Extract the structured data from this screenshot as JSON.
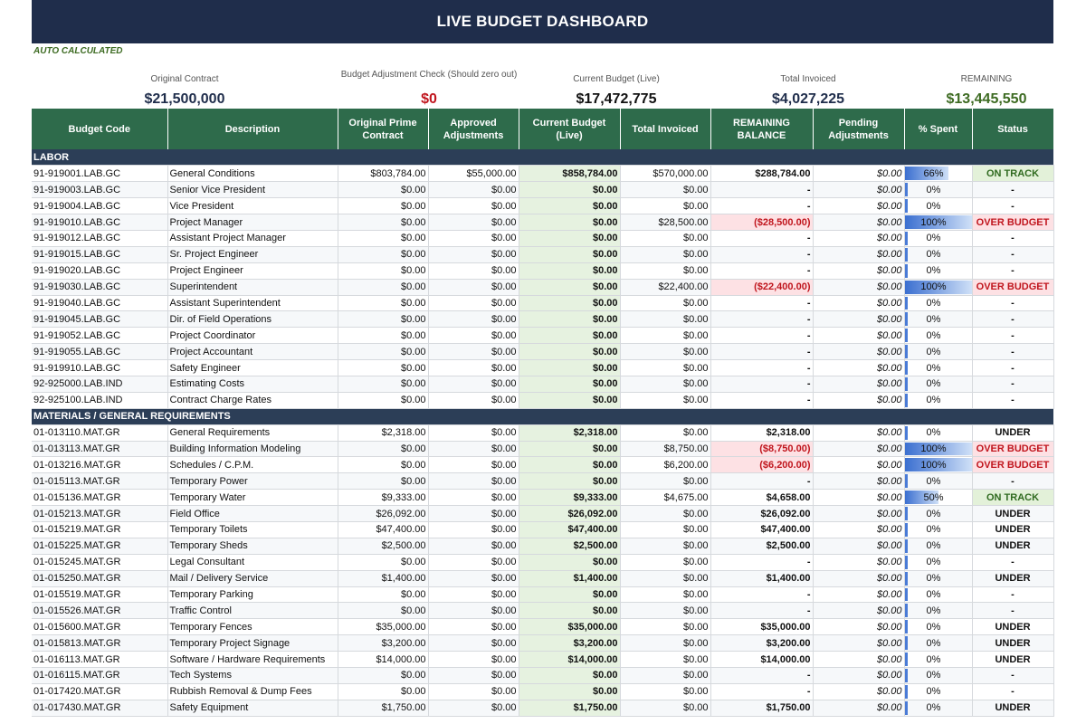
{
  "title": "LIVE BUDGET DASHBOARD",
  "auto_calc": "AUTO CALCULATED",
  "summary": [
    {
      "label": "Original Contract",
      "value": "$21,500,000",
      "color": "#1f2d4b"
    },
    {
      "label": "Budget Adjustment Check (Should zero out)",
      "value": "$0",
      "color": "#c0151d"
    },
    {
      "label": "Current Budget (Live)",
      "value": "$17,472,775",
      "color": "#111111"
    },
    {
      "label": "Total Invoiced",
      "value": "$4,027,225",
      "color": "#1f2d4b"
    },
    {
      "label": "REMAINING",
      "value": "$13,445,550",
      "color": "#3d6b22"
    }
  ],
  "headers": [
    "Budget Code",
    "Description",
    "Original Prime Contract",
    "Approved Adjustments",
    "Current Budget (Live)",
    "Total Invoiced",
    "REMAINING BALANCE",
    "Pending Adjustments",
    "% Spent",
    "Status"
  ],
  "sections": [
    {
      "name": "LABOR",
      "rows": [
        {
          "code": "91-919001.LAB.GC",
          "desc": "General Conditions",
          "orig": "$803,784.00",
          "adj": "$55,000.00",
          "cur": "$858,784.00",
          "inv": "$570,000.00",
          "rem": "$288,784.00",
          "pend": "$0.00",
          "pct": "66%",
          "pctv": 66,
          "status": "ON TRACK"
        },
        {
          "code": "91-919003.LAB.GC",
          "desc": "Senior Vice President",
          "orig": "$0.00",
          "adj": "$0.00",
          "cur": "$0.00",
          "inv": "$0.00",
          "rem": "-",
          "pend": "$0.00",
          "pct": "0%",
          "pctv": 0,
          "status": "-"
        },
        {
          "code": "91-919004.LAB.GC",
          "desc": "Vice President",
          "orig": "$0.00",
          "adj": "$0.00",
          "cur": "$0.00",
          "inv": "$0.00",
          "rem": "-",
          "pend": "$0.00",
          "pct": "0%",
          "pctv": 0,
          "status": "-"
        },
        {
          "code": "91-919010.LAB.GC",
          "desc": "Project Manager",
          "orig": "$0.00",
          "adj": "$0.00",
          "cur": "$0.00",
          "inv": "$28,500.00",
          "rem": "($28,500.00)",
          "pend": "$0.00",
          "pct": "100%",
          "pctv": 100,
          "status": "OVER BUDGET"
        },
        {
          "code": "91-919012.LAB.GC",
          "desc": "Assistant Project Manager",
          "orig": "$0.00",
          "adj": "$0.00",
          "cur": "$0.00",
          "inv": "$0.00",
          "rem": "-",
          "pend": "$0.00",
          "pct": "0%",
          "pctv": 0,
          "status": "-"
        },
        {
          "code": "91-919015.LAB.GC",
          "desc": "Sr. Project Engineer",
          "orig": "$0.00",
          "adj": "$0.00",
          "cur": "$0.00",
          "inv": "$0.00",
          "rem": "-",
          "pend": "$0.00",
          "pct": "0%",
          "pctv": 0,
          "status": "-"
        },
        {
          "code": "91-919020.LAB.GC",
          "desc": "Project Engineer",
          "orig": "$0.00",
          "adj": "$0.00",
          "cur": "$0.00",
          "inv": "$0.00",
          "rem": "-",
          "pend": "$0.00",
          "pct": "0%",
          "pctv": 0,
          "status": "-"
        },
        {
          "code": "91-919030.LAB.GC",
          "desc": "Superintendent",
          "orig": "$0.00",
          "adj": "$0.00",
          "cur": "$0.00",
          "inv": "$22,400.00",
          "rem": "($22,400.00)",
          "pend": "$0.00",
          "pct": "100%",
          "pctv": 100,
          "status": "OVER BUDGET"
        },
        {
          "code": "91-919040.LAB.GC",
          "desc": "Assistant Superintendent",
          "orig": "$0.00",
          "adj": "$0.00",
          "cur": "$0.00",
          "inv": "$0.00",
          "rem": "-",
          "pend": "$0.00",
          "pct": "0%",
          "pctv": 0,
          "status": "-"
        },
        {
          "code": "91-919045.LAB.GC",
          "desc": "Dir. of Field Operations",
          "orig": "$0.00",
          "adj": "$0.00",
          "cur": "$0.00",
          "inv": "$0.00",
          "rem": "-",
          "pend": "$0.00",
          "pct": "0%",
          "pctv": 0,
          "status": "-"
        },
        {
          "code": "91-919052.LAB.GC",
          "desc": "Project Coordinator",
          "orig": "$0.00",
          "adj": "$0.00",
          "cur": "$0.00",
          "inv": "$0.00",
          "rem": "-",
          "pend": "$0.00",
          "pct": "0%",
          "pctv": 0,
          "status": "-"
        },
        {
          "code": "91-919055.LAB.GC",
          "desc": "Project Accountant",
          "orig": "$0.00",
          "adj": "$0.00",
          "cur": "$0.00",
          "inv": "$0.00",
          "rem": "-",
          "pend": "$0.00",
          "pct": "0%",
          "pctv": 0,
          "status": "-"
        },
        {
          "code": "91-919910.LAB.GC",
          "desc": "Safety Engineer",
          "orig": "$0.00",
          "adj": "$0.00",
          "cur": "$0.00",
          "inv": "$0.00",
          "rem": "-",
          "pend": "$0.00",
          "pct": "0%",
          "pctv": 0,
          "status": "-"
        },
        {
          "code": "92-925000.LAB.IND",
          "desc": "Estimating Costs",
          "orig": "$0.00",
          "adj": "$0.00",
          "cur": "$0.00",
          "inv": "$0.00",
          "rem": "-",
          "pend": "$0.00",
          "pct": "0%",
          "pctv": 0,
          "status": "-"
        },
        {
          "code": "92-925100.LAB.IND",
          "desc": "Contract Charge Rates",
          "orig": "$0.00",
          "adj": "$0.00",
          "cur": "$0.00",
          "inv": "$0.00",
          "rem": "-",
          "pend": "$0.00",
          "pct": "0%",
          "pctv": 0,
          "status": "-"
        }
      ]
    },
    {
      "name": "MATERIALS / GENERAL REQUIREMENTS",
      "rows": [
        {
          "code": "01-013110.MAT.GR",
          "desc": "General Requirements",
          "orig": "$2,318.00",
          "adj": "$0.00",
          "cur": "$2,318.00",
          "inv": "$0.00",
          "rem": "$2,318.00",
          "pend": "$0.00",
          "pct": "0%",
          "pctv": 0,
          "status": "UNDER"
        },
        {
          "code": "01-013113.MAT.GR",
          "desc": "Building Information Modeling",
          "orig": "$0.00",
          "adj": "$0.00",
          "cur": "$0.00",
          "inv": "$8,750.00",
          "rem": "($8,750.00)",
          "pend": "$0.00",
          "pct": "100%",
          "pctv": 100,
          "status": "OVER BUDGET"
        },
        {
          "code": "01-013216.MAT.GR",
          "desc": "Schedules / C.P.M.",
          "orig": "$0.00",
          "adj": "$0.00",
          "cur": "$0.00",
          "inv": "$6,200.00",
          "rem": "($6,200.00)",
          "pend": "$0.00",
          "pct": "100%",
          "pctv": 100,
          "status": "OVER BUDGET"
        },
        {
          "code": "01-015113.MAT.GR",
          "desc": "Temporary Power",
          "orig": "$0.00",
          "adj": "$0.00",
          "cur": "$0.00",
          "inv": "$0.00",
          "rem": "-",
          "pend": "$0.00",
          "pct": "0%",
          "pctv": 0,
          "status": "-"
        },
        {
          "code": "01-015136.MAT.GR",
          "desc": "Temporary Water",
          "orig": "$9,333.00",
          "adj": "$0.00",
          "cur": "$9,333.00",
          "inv": "$4,675.00",
          "rem": "$4,658.00",
          "pend": "$0.00",
          "pct": "50%",
          "pctv": 50,
          "status": "ON TRACK"
        },
        {
          "code": "01-015213.MAT.GR",
          "desc": "Field Office",
          "orig": "$26,092.00",
          "adj": "$0.00",
          "cur": "$26,092.00",
          "inv": "$0.00",
          "rem": "$26,092.00",
          "pend": "$0.00",
          "pct": "0%",
          "pctv": 0,
          "status": "UNDER"
        },
        {
          "code": "01-015219.MAT.GR",
          "desc": "Temporary Toilets",
          "orig": "$47,400.00",
          "adj": "$0.00",
          "cur": "$47,400.00",
          "inv": "$0.00",
          "rem": "$47,400.00",
          "pend": "$0.00",
          "pct": "0%",
          "pctv": 0,
          "status": "UNDER"
        },
        {
          "code": "01-015225.MAT.GR",
          "desc": "Temporary Sheds",
          "orig": "$2,500.00",
          "adj": "$0.00",
          "cur": "$2,500.00",
          "inv": "$0.00",
          "rem": "$2,500.00",
          "pend": "$0.00",
          "pct": "0%",
          "pctv": 0,
          "status": "UNDER"
        },
        {
          "code": "01-015245.MAT.GR",
          "desc": "Legal Consultant",
          "orig": "$0.00",
          "adj": "$0.00",
          "cur": "$0.00",
          "inv": "$0.00",
          "rem": "-",
          "pend": "$0.00",
          "pct": "0%",
          "pctv": 0,
          "status": "-"
        },
        {
          "code": "01-015250.MAT.GR",
          "desc": "Mail / Delivery Service",
          "orig": "$1,400.00",
          "adj": "$0.00",
          "cur": "$1,400.00",
          "inv": "$0.00",
          "rem": "$1,400.00",
          "pend": "$0.00",
          "pct": "0%",
          "pctv": 0,
          "status": "UNDER"
        },
        {
          "code": "01-015519.MAT.GR",
          "desc": "Temporary Parking",
          "orig": "$0.00",
          "adj": "$0.00",
          "cur": "$0.00",
          "inv": "$0.00",
          "rem": "-",
          "pend": "$0.00",
          "pct": "0%",
          "pctv": 0,
          "status": "-"
        },
        {
          "code": "01-015526.MAT.GR",
          "desc": "Traffic Control",
          "orig": "$0.00",
          "adj": "$0.00",
          "cur": "$0.00",
          "inv": "$0.00",
          "rem": "-",
          "pend": "$0.00",
          "pct": "0%",
          "pctv": 0,
          "status": "-"
        },
        {
          "code": "01-015600.MAT.GR",
          "desc": "Temporary Fences",
          "orig": "$35,000.00",
          "adj": "$0.00",
          "cur": "$35,000.00",
          "inv": "$0.00",
          "rem": "$35,000.00",
          "pend": "$0.00",
          "pct": "0%",
          "pctv": 0,
          "status": "UNDER"
        },
        {
          "code": "01-015813.MAT.GR",
          "desc": "Temporary Project Signage",
          "orig": "$3,200.00",
          "adj": "$0.00",
          "cur": "$3,200.00",
          "inv": "$0.00",
          "rem": "$3,200.00",
          "pend": "$0.00",
          "pct": "0%",
          "pctv": 0,
          "status": "UNDER"
        },
        {
          "code": "01-016113.MAT.GR",
          "desc": "Software / Hardware Requirements",
          "orig": "$14,000.00",
          "adj": "$0.00",
          "cur": "$14,000.00",
          "inv": "$0.00",
          "rem": "$14,000.00",
          "pend": "$0.00",
          "pct": "0%",
          "pctv": 0,
          "status": "UNDER"
        },
        {
          "code": "01-016115.MAT.GR",
          "desc": "Tech Systems",
          "orig": "$0.00",
          "adj": "$0.00",
          "cur": "$0.00",
          "inv": "$0.00",
          "rem": "-",
          "pend": "$0.00",
          "pct": "0%",
          "pctv": 0,
          "status": "-"
        },
        {
          "code": "01-017420.MAT.GR",
          "desc": "Rubbish Removal & Dump Fees",
          "orig": "$0.00",
          "adj": "$0.00",
          "cur": "$0.00",
          "inv": "$0.00",
          "rem": "-",
          "pend": "$0.00",
          "pct": "0%",
          "pctv": 0,
          "status": "-"
        },
        {
          "code": "01-017430.MAT.GR",
          "desc": "Safety Equipment",
          "orig": "$1,750.00",
          "adj": "$0.00",
          "cur": "$1,750.00",
          "inv": "$0.00",
          "rem": "$1,750.00",
          "pend": "$0.00",
          "pct": "0%",
          "pctv": 0,
          "status": "UNDER"
        }
      ]
    }
  ]
}
